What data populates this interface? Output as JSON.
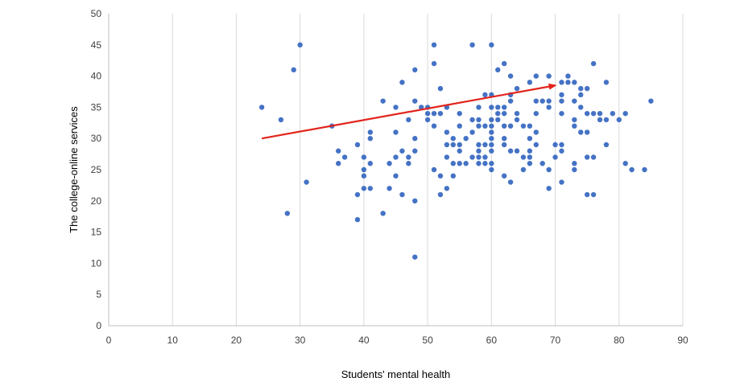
{
  "chart_data": {
    "type": "scatter",
    "xlabel": "Students' mental health",
    "ylabel": "The college-online services",
    "xlim": [
      0,
      90
    ],
    "ylim": [
      0,
      50
    ],
    "x_ticks": [
      0,
      10,
      20,
      30,
      40,
      50,
      60,
      70,
      80,
      90
    ],
    "y_ticks": [
      0,
      5,
      10,
      15,
      20,
      25,
      30,
      35,
      40,
      45,
      50
    ],
    "grid": "vertical",
    "legend": "none",
    "colors": {
      "points": "#4472c4",
      "trend": "#e3241b",
      "grid": "#d9d9d9",
      "axis": "#bfbfbf"
    },
    "series": [
      {
        "points": [
          [
            24,
            35
          ],
          [
            27,
            33
          ],
          [
            28,
            18
          ],
          [
            29,
            41
          ],
          [
            30,
            45
          ],
          [
            31,
            23
          ],
          [
            35,
            32
          ],
          [
            36,
            28
          ],
          [
            36,
            26
          ],
          [
            37,
            27
          ],
          [
            39,
            29
          ],
          [
            39,
            21
          ],
          [
            39,
            17
          ],
          [
            40,
            27
          ],
          [
            40,
            25
          ],
          [
            40,
            24
          ],
          [
            40,
            22
          ],
          [
            41,
            31
          ],
          [
            41,
            30
          ],
          [
            41,
            26
          ],
          [
            41,
            22
          ],
          [
            43,
            36
          ],
          [
            43,
            18
          ],
          [
            44,
            26
          ],
          [
            44,
            22
          ],
          [
            45,
            35
          ],
          [
            45,
            31
          ],
          [
            45,
            27
          ],
          [
            45,
            24
          ],
          [
            46,
            39
          ],
          [
            46,
            28
          ],
          [
            46,
            21
          ],
          [
            47,
            33
          ],
          [
            47,
            27
          ],
          [
            47,
            26
          ],
          [
            48,
            41
          ],
          [
            48,
            36
          ],
          [
            48,
            30
          ],
          [
            48,
            28
          ],
          [
            48,
            20
          ],
          [
            48,
            11
          ],
          [
            49,
            35
          ],
          [
            50,
            35
          ],
          [
            50,
            34
          ],
          [
            50,
            33
          ],
          [
            51,
            45
          ],
          [
            51,
            42
          ],
          [
            51,
            34
          ],
          [
            51,
            32
          ],
          [
            51,
            25
          ],
          [
            52,
            38
          ],
          [
            52,
            34
          ],
          [
            52,
            24
          ],
          [
            52,
            21
          ],
          [
            53,
            35
          ],
          [
            53,
            31
          ],
          [
            53,
            29
          ],
          [
            53,
            27
          ],
          [
            53,
            22
          ],
          [
            54,
            30
          ],
          [
            54,
            29
          ],
          [
            54,
            26
          ],
          [
            54,
            24
          ],
          [
            55,
            34
          ],
          [
            55,
            32
          ],
          [
            55,
            29
          ],
          [
            55,
            28
          ],
          [
            55,
            26
          ],
          [
            56,
            30
          ],
          [
            56,
            26
          ],
          [
            57,
            45
          ],
          [
            57,
            33
          ],
          [
            57,
            31
          ],
          [
            57,
            27
          ],
          [
            58,
            35
          ],
          [
            58,
            33
          ],
          [
            58,
            32
          ],
          [
            58,
            29
          ],
          [
            58,
            28
          ],
          [
            58,
            27
          ],
          [
            58,
            26
          ],
          [
            59,
            37
          ],
          [
            59,
            32
          ],
          [
            59,
            29
          ],
          [
            59,
            27
          ],
          [
            59,
            26
          ],
          [
            60,
            45
          ],
          [
            60,
            37
          ],
          [
            60,
            35
          ],
          [
            60,
            33
          ],
          [
            60,
            32
          ],
          [
            60,
            31
          ],
          [
            60,
            30
          ],
          [
            60,
            29
          ],
          [
            60,
            28
          ],
          [
            60,
            26
          ],
          [
            60,
            25
          ],
          [
            61,
            41
          ],
          [
            61,
            35
          ],
          [
            61,
            34
          ],
          [
            61,
            33
          ],
          [
            62,
            42
          ],
          [
            62,
            35
          ],
          [
            62,
            34
          ],
          [
            62,
            32
          ],
          [
            62,
            30
          ],
          [
            62,
            29
          ],
          [
            62,
            24
          ],
          [
            63,
            40
          ],
          [
            63,
            37
          ],
          [
            63,
            36
          ],
          [
            63,
            32
          ],
          [
            63,
            28
          ],
          [
            63,
            23
          ],
          [
            64,
            38
          ],
          [
            64,
            34
          ],
          [
            64,
            33
          ],
          [
            64,
            28
          ],
          [
            65,
            32
          ],
          [
            65,
            27
          ],
          [
            65,
            25
          ],
          [
            66,
            39
          ],
          [
            66,
            32
          ],
          [
            66,
            30
          ],
          [
            66,
            28
          ],
          [
            66,
            27
          ],
          [
            66,
            26
          ],
          [
            67,
            40
          ],
          [
            67,
            36
          ],
          [
            67,
            34
          ],
          [
            67,
            31
          ],
          [
            67,
            29
          ],
          [
            68,
            36
          ],
          [
            68,
            26
          ],
          [
            69,
            40
          ],
          [
            69,
            36
          ],
          [
            69,
            35
          ],
          [
            69,
            25
          ],
          [
            69,
            22
          ],
          [
            70,
            29
          ],
          [
            70,
            27
          ],
          [
            71,
            39
          ],
          [
            71,
            37
          ],
          [
            71,
            36
          ],
          [
            71,
            34
          ],
          [
            71,
            29
          ],
          [
            71,
            28
          ],
          [
            71,
            23
          ],
          [
            72,
            40
          ],
          [
            72,
            39
          ],
          [
            73,
            39
          ],
          [
            73,
            36
          ],
          [
            73,
            33
          ],
          [
            73,
            32
          ],
          [
            73,
            26
          ],
          [
            73,
            25
          ],
          [
            74,
            38
          ],
          [
            74,
            37
          ],
          [
            74,
            35
          ],
          [
            74,
            31
          ],
          [
            75,
            38
          ],
          [
            75,
            34
          ],
          [
            75,
            31
          ],
          [
            75,
            27
          ],
          [
            75,
            21
          ],
          [
            76,
            42
          ],
          [
            76,
            34
          ],
          [
            76,
            27
          ],
          [
            76,
            21
          ],
          [
            77,
            34
          ],
          [
            77,
            33
          ],
          [
            78,
            39
          ],
          [
            78,
            33
          ],
          [
            78,
            29
          ],
          [
            79,
            34
          ],
          [
            80,
            33
          ],
          [
            81,
            34
          ],
          [
            81,
            26
          ],
          [
            82,
            25
          ],
          [
            84,
            25
          ],
          [
            85,
            36
          ]
        ]
      }
    ],
    "trendline": {
      "x": [
        24,
        70
      ],
      "y": [
        30,
        38.5
      ],
      "arrow": true
    }
  }
}
